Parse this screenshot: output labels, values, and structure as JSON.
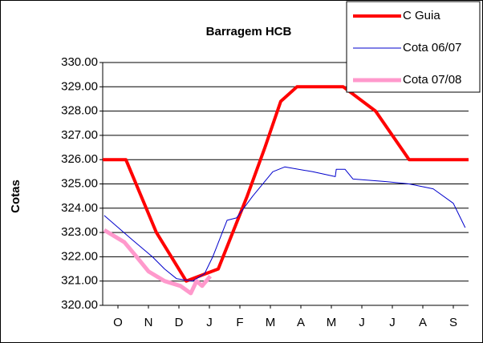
{
  "chart_data": {
    "type": "line",
    "title": "Barragem HCB",
    "y_label": "Cotas",
    "xlim": [
      0,
      12
    ],
    "xticks": [
      {
        "value": 0.5,
        "label": "O"
      },
      {
        "value": 1.5,
        "label": "N"
      },
      {
        "value": 2.5,
        "label": "D"
      },
      {
        "value": 3.5,
        "label": "J"
      },
      {
        "value": 4.5,
        "label": "F"
      },
      {
        "value": 5.5,
        "label": "M"
      },
      {
        "value": 6.5,
        "label": "A"
      },
      {
        "value": 7.5,
        "label": "M"
      },
      {
        "value": 8.5,
        "label": "J"
      },
      {
        "value": 9.5,
        "label": "J"
      },
      {
        "value": 10.5,
        "label": "A"
      },
      {
        "value": 11.5,
        "label": "S"
      }
    ],
    "ylim": [
      320,
      330
    ],
    "yticks": [
      {
        "value": 320,
        "label": "320.00"
      },
      {
        "value": 321,
        "label": "321.00"
      },
      {
        "value": 322,
        "label": "322.00"
      },
      {
        "value": 323,
        "label": "323.00"
      },
      {
        "value": 324,
        "label": "324.00"
      },
      {
        "value": 325,
        "label": "325.00"
      },
      {
        "value": 326,
        "label": "326.00"
      },
      {
        "value": 327,
        "label": "327.00"
      },
      {
        "value": 328,
        "label": "328.00"
      },
      {
        "value": 329,
        "label": "329.00"
      },
      {
        "value": 330,
        "label": "330.00"
      }
    ],
    "grid": true,
    "legend": "top-right",
    "series": [
      {
        "name": "C Guia",
        "color": "#ff0000",
        "width": 4,
        "x": [
          0,
          0.76,
          1.76,
          2.74,
          3.37,
          3.79,
          4.74,
          5.32,
          5.84,
          6.37,
          7.89,
          8.95,
          10.05,
          12
        ],
        "values": [
          326,
          326,
          323,
          321,
          321.3,
          321.5,
          324.5,
          326.5,
          328.4,
          329,
          329,
          328,
          326,
          326
        ]
      },
      {
        "name": "Cota 06/07",
        "color": "#0000cc",
        "width": 1,
        "x": [
          0.05,
          0.97,
          1.63,
          2.03,
          2.42,
          2.95,
          3.34,
          3.61,
          4.08,
          4.39,
          4.92,
          5.58,
          5.97,
          6.89,
          7.63,
          7.66,
          7.95,
          8.21,
          9.26,
          10.05,
          10.84,
          11.5,
          11.89
        ],
        "values": [
          323.7,
          322.7,
          322,
          321.5,
          321.1,
          321,
          321.3,
          322,
          323.5,
          323.6,
          324.5,
          325.5,
          325.7,
          325.5,
          325.3,
          325.6,
          325.6,
          325.2,
          325.1,
          325,
          324.8,
          324.2,
          323.2
        ]
      },
      {
        "name": "Cota 07/08",
        "color": "#ff99cc",
        "width": 5,
        "x": [
          0.05,
          0.71,
          1.11,
          1.5,
          2.03,
          2.55,
          2.89,
          3.08,
          3.26,
          3.53
        ],
        "values": [
          323.1,
          322.6,
          322,
          321.4,
          321,
          320.8,
          320.5,
          321,
          320.8,
          321.2
        ]
      }
    ]
  }
}
